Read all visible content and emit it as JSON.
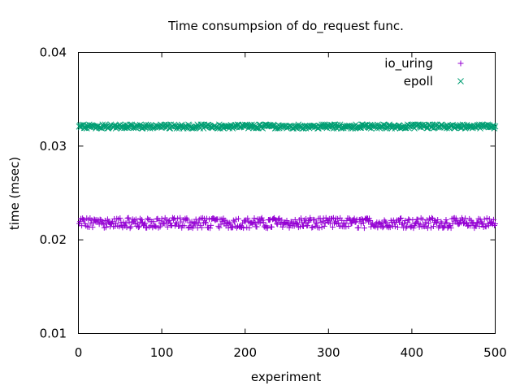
{
  "chart_data": {
    "type": "scatter",
    "title": "Time consumpsion of do_request func.",
    "xlabel": "experiment",
    "ylabel": "time (msec)",
    "xlim": [
      0,
      500
    ],
    "ylim": [
      0.01,
      0.04
    ],
    "x_ticks": [
      0,
      100,
      200,
      300,
      400,
      500
    ],
    "x_tick_labels": [
      "0",
      "100",
      "200",
      "300",
      "400",
      "500"
    ],
    "y_ticks": [
      0.01,
      0.02,
      0.03,
      0.04
    ],
    "y_tick_labels": [
      "0.01",
      "0.02",
      "0.03",
      "0.04"
    ],
    "grid": false,
    "legend_position": "top-right",
    "n_points_per_series": 500,
    "series": [
      {
        "name": "io_uring",
        "marker": "plus",
        "color": "#9400d3",
        "typical_values": [
          0.0214,
          0.0218,
          0.0222
        ],
        "range": [
          0.0211,
          0.0225
        ]
      },
      {
        "name": "epoll",
        "marker": "cross",
        "color": "#009e73",
        "typical_values": [
          0.032,
          0.0322
        ],
        "range": [
          0.0319,
          0.0323
        ]
      }
    ]
  }
}
